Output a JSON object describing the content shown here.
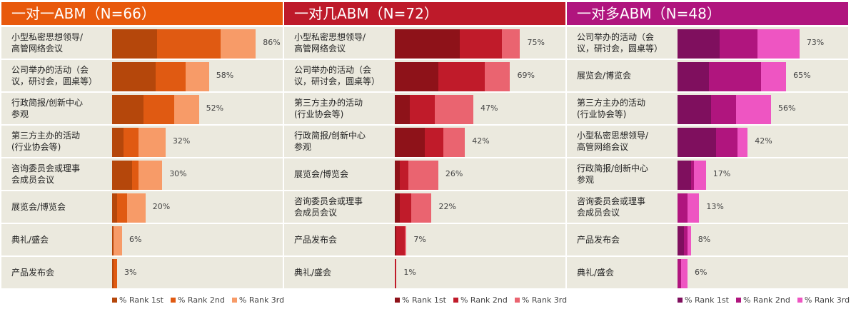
{
  "chart_data": [
    {
      "type": "bar",
      "orientation": "horizontal",
      "stacked": true,
      "title": "一对一ABM（N=66）",
      "header_color": "#E8590C",
      "colors": [
        "#B5470B",
        "#E05A12",
        "#F79B68"
      ],
      "categories": [
        "小型私密思想领导/\n高管网络会议",
        "公司举办的活动（会\n议，研讨会，圆桌等）",
        "行政简报/创新中心\n参观",
        "第三方主办的活动\n(行业协会等)",
        "咨询委员会或理事\n会成员会议",
        "展览会/博览会",
        "典礼/盛会",
        "产品发布会"
      ],
      "totals": [
        "86%",
        "58%",
        "52%",
        "32%",
        "30%",
        "20%",
        "6%",
        "3%"
      ],
      "series": [
        {
          "name": "% Rank 1st",
          "values": [
            27,
            26,
            19,
            7,
            12,
            3,
            1,
            1
          ]
        },
        {
          "name": "% Rank 2nd",
          "values": [
            38,
            18,
            18,
            9,
            4,
            6,
            0,
            2
          ]
        },
        {
          "name": "% Rank 3rd",
          "values": [
            21,
            14,
            15,
            16,
            14,
            11,
            5,
            0
          ]
        }
      ]
    },
    {
      "type": "bar",
      "orientation": "horizontal",
      "stacked": true,
      "title": "一对几ABM（N=72）",
      "header_color": "#BE1A2A",
      "colors": [
        "#8E1219",
        "#C01B2A",
        "#EA6470"
      ],
      "categories": [
        "小型私密思想领导/\n高管网络会议",
        "公司举办的活动（会\n议，研讨会，圆桌等）",
        "第三方主办的活动\n(行业协会等)",
        "行政简报/创新中心\n参观",
        "展览会/博览会",
        "咨询委员会或理事\n会成员会议",
        "产品发布会",
        " 典礼/盛会"
      ],
      "totals": [
        "75%",
        "69%",
        "47%",
        "42%",
        "26%",
        "22%",
        "7%",
        "1%"
      ],
      "series": [
        {
          "name": "% Rank 1st",
          "values": [
            39,
            26,
            9,
            18,
            3,
            3,
            1,
            0
          ]
        },
        {
          "name": "% Rank 2nd",
          "values": [
            25,
            28,
            15,
            11,
            5,
            7,
            5,
            1
          ]
        },
        {
          "name": "% Rank 3rd",
          "values": [
            11,
            15,
            23,
            13,
            18,
            12,
            1,
            0
          ]
        }
      ]
    },
    {
      "type": "bar",
      "orientation": "horizontal",
      "stacked": true,
      "title": "一对多ABM（N=48）",
      "header_color": "#B0157E",
      "colors": [
        "#7F0F5E",
        "#B0157E",
        "#EE55C2"
      ],
      "categories": [
        "公司举办的活动（会\n议，研讨会，圆桌等）",
        "展览会/博览会",
        "第三方主办的活动\n(行业协会等)",
        "小型私密思想领导/\n高管网络会议",
        "行政简报/创新中心\n参观",
        "咨询委员会或理事\n会成员会议",
        " 产品发布会",
        "典礼/盛会"
      ],
      "totals": [
        "73%",
        "65%",
        "56%",
        "42%",
        "17%",
        "13%",
        "8%",
        "6%"
      ],
      "series": [
        {
          "name": "% Rank 1st",
          "values": [
            25,
            19,
            20,
            23,
            8,
            0,
            4,
            0
          ]
        },
        {
          "name": "% Rank 2nd",
          "values": [
            23,
            31,
            15,
            13,
            2,
            6,
            2,
            2
          ]
        },
        {
          "name": "% Rank 3rd",
          "values": [
            25,
            15,
            21,
            6,
            7,
            7,
            2,
            4
          ]
        }
      ]
    }
  ]
}
